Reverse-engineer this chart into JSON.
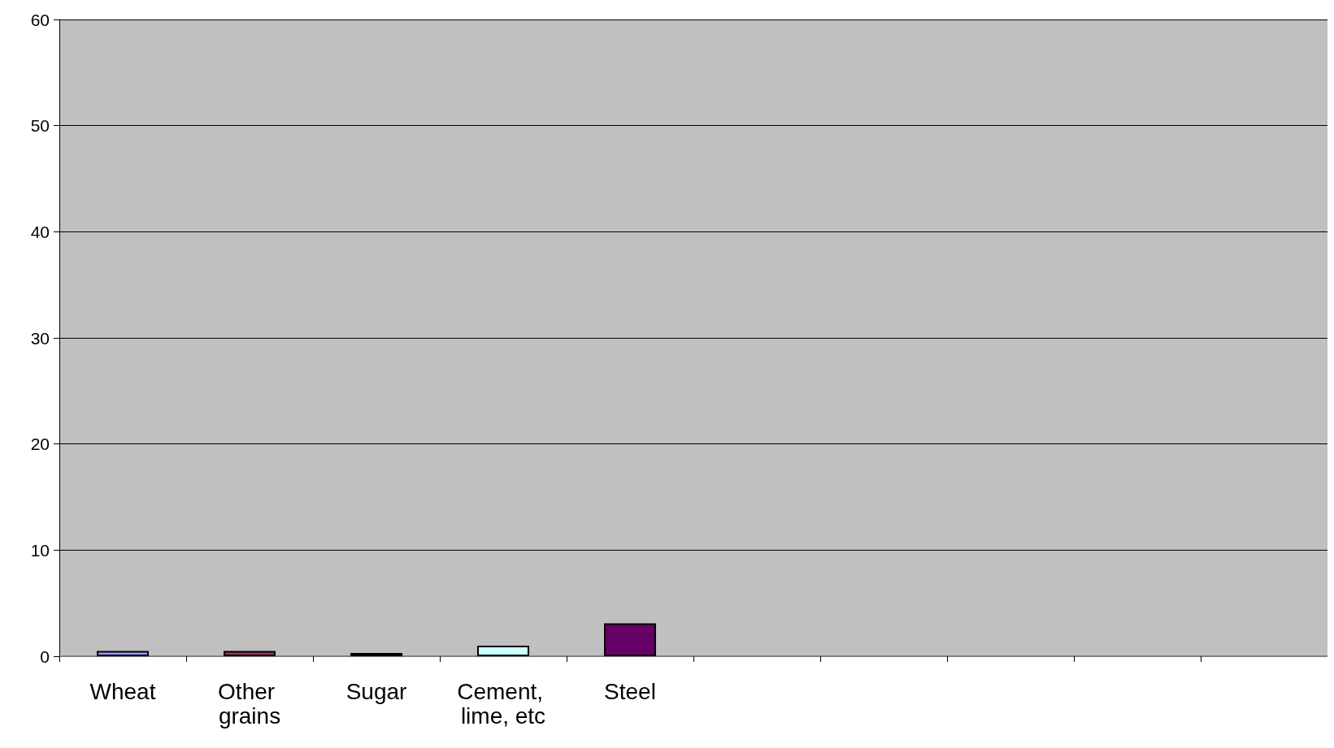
{
  "chart_data": {
    "type": "bar",
    "categories": [
      "Wheat",
      "Other grains",
      "Sugar",
      "Cement, lime, etc",
      "Steel",
      null,
      null,
      null,
      null,
      null
    ],
    "values": [
      0.5,
      0.5,
      0.3,
      1.0,
      3.1,
      null,
      null,
      null,
      null,
      null
    ],
    "colors": [
      "#9999ff",
      "#993366",
      "#ffffcc",
      "#ccffff",
      "#660066",
      null,
      null,
      null,
      null,
      null
    ],
    "ylim": [
      0,
      60
    ],
    "yticks": [
      0,
      10,
      20,
      30,
      40,
      50,
      60
    ],
    "grid": "y"
  }
}
